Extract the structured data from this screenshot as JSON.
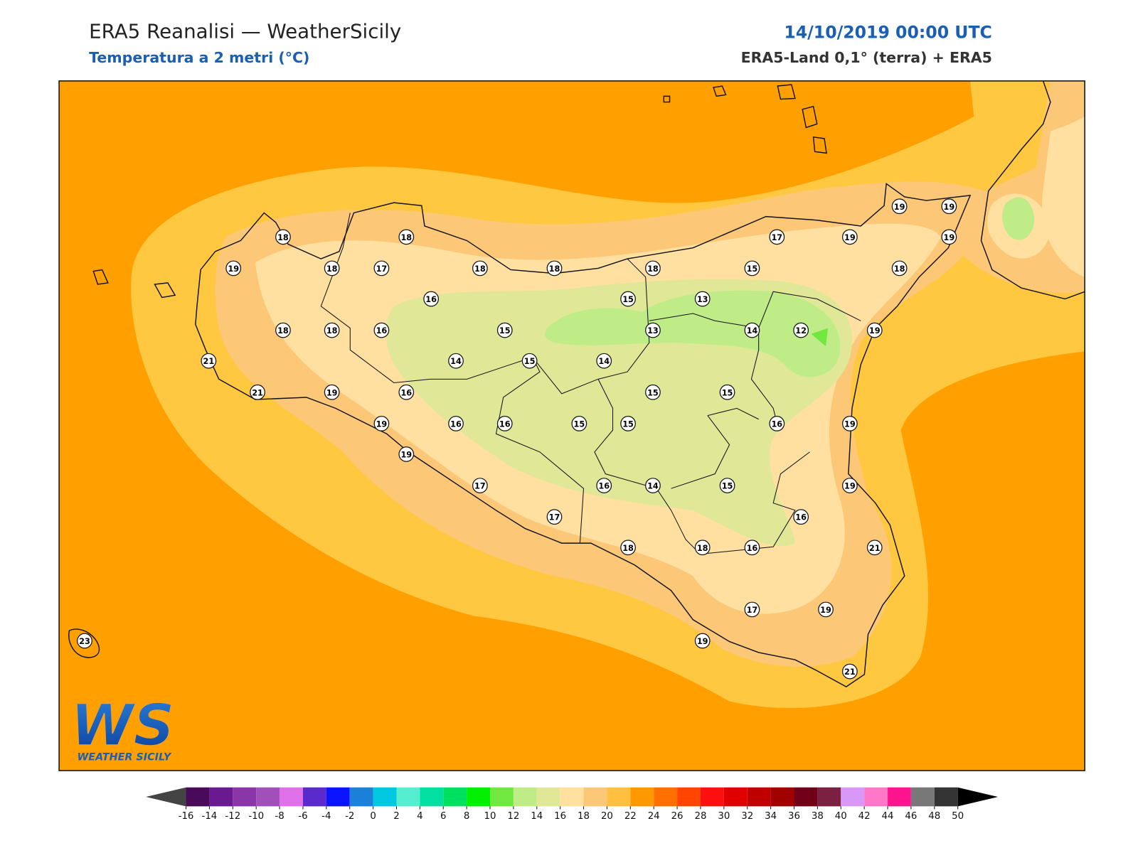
{
  "header": {
    "title": "ERA5 Reanalisi — WeatherSicily",
    "subtitle": "Temperatura a 2 metri (°C)",
    "datetime": "14/10/2019 00:00 UTC",
    "source": "ERA5-Land 0,1° (terra) + ERA5"
  },
  "logo": {
    "mark": "WS",
    "name": "WEATHER SICILY"
  },
  "stations": [
    18,
    18,
    19,
    18,
    17,
    18,
    18,
    18,
    17,
    19,
    19,
    19,
    19,
    15,
    18,
    16,
    15,
    13,
    18,
    18,
    16,
    15,
    13,
    14,
    12,
    19,
    21,
    14,
    15,
    14,
    21,
    19,
    16,
    15,
    15,
    19,
    16,
    16,
    15,
    15,
    16,
    19,
    19,
    17,
    16,
    14,
    15,
    19,
    17,
    16,
    18,
    18,
    16,
    21,
    17,
    19,
    19,
    21,
    23
  ],
  "colorbar": {
    "ticks": [
      -16,
      -14,
      -12,
      -10,
      -8,
      -6,
      -4,
      -2,
      0,
      2,
      4,
      6,
      8,
      10,
      12,
      14,
      16,
      18,
      20,
      22,
      24,
      26,
      28,
      30,
      32,
      34,
      36,
      38,
      40,
      42,
      44,
      46,
      48,
      50
    ],
    "colors": [
      "#4a0a5a",
      "#6a1a90",
      "#8a35a8",
      "#a050b8",
      "#e070e8",
      "#5a2acc",
      "#0a14ff",
      "#1a80d8",
      "#00c8e0",
      "#55eed0",
      "#00e0a0",
      "#00e060",
      "#00f000",
      "#70e840",
      "#c0ec88",
      "#e0e898",
      "#ffe0a0",
      "#fcc878",
      "#ffc040",
      "#ff9900",
      "#ff7000",
      "#ff4500",
      "#ff1010",
      "#e00000",
      "#c00000",
      "#a00000",
      "#700018",
      "#7a2040",
      "#d898f8",
      "#ff78c8",
      "#ff1490",
      "#787878",
      "#333333"
    ],
    "under_color": "#444444",
    "over_color": "#000000"
  }
}
